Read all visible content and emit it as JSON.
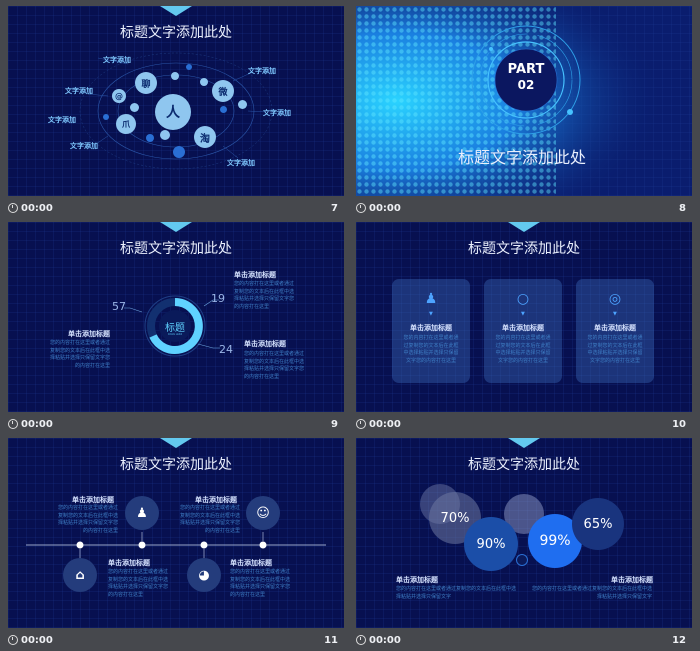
{
  "footer_time": "00:00",
  "slides": [
    {
      "page": "7",
      "title": "标题文字添加此处",
      "labels": [
        "文字添加",
        "文字添加",
        "文字添加",
        "文字添加",
        "文字添加",
        "文字添加",
        "文字添加"
      ],
      "icons": {
        "center": "人",
        "chat": "聊",
        "weibo": "微",
        "taobao": "淘",
        "at": "@",
        "paw": "爪"
      }
    },
    {
      "page": "8",
      "part": "PART",
      "num": "02",
      "title": "标题文字添加此处"
    },
    {
      "page": "9",
      "title": "标题文字添加此处",
      "ring_label": "标题",
      "ring_sub": "Click Add",
      "values": [
        "57",
        "19",
        "24"
      ],
      "blocks": [
        {
          "heading": "单击添加标题",
          "body": "您的内容打在这里或者通过复制您的文本后在此框中选择粘贴并选择只保留文字您的内容打在这里"
        },
        {
          "heading": "单击添加标题",
          "body": "您的内容打在这里或者通过复制您的文本后在此框中选择粘贴并选择只保留文字您的内容打在这里"
        },
        {
          "heading": "单击添加标题",
          "body": "您的内容打在这里或者通过复制您的文本后在此框中选择粘贴并选择只保留文字您的内容打在这里"
        }
      ]
    },
    {
      "page": "10",
      "title": "标题文字添加此处",
      "cards": [
        {
          "heading": "单击添加标题",
          "body": "您的内容打在这里或者通过复制您的文本后在此框中选择粘贴并选择只保留文字您的内容打在这里"
        },
        {
          "heading": "单击添加标题",
          "body": "您的内容打在这里或者通过复制您的文本后在此框中选择粘贴并选择只保留文字您的内容打在这里"
        },
        {
          "heading": "单击添加标题",
          "body": "您的内容打在这里或者通过复制您的文本后在此框中选择粘贴并选择只保留文字您的内容打在这里"
        }
      ]
    },
    {
      "page": "11",
      "title": "标题文字添加此处",
      "items": [
        {
          "heading": "单击添加标题",
          "body": "您的内容打在这里或者通过复制您的文本后在此框中选择粘贴并选择只保留文字您的内容打在这里"
        },
        {
          "heading": "单击添加标题",
          "body": "您的内容打在这里或者通过复制您的文本后在此框中选择粘贴并选择只保留文字您的内容打在这里"
        },
        {
          "heading": "单击添加标题",
          "body": "您的内容打在这里或者通过复制您的文本后在此框中选择粘贴并选择只保留文字您的内容打在这里"
        },
        {
          "heading": "单击添加标题",
          "body": "您的内容打在这里或者通过复制您的文本后在此框中选择粘贴并选择只保留文字您的内容打在这里"
        }
      ]
    },
    {
      "page": "12",
      "title": "标题文字添加此处",
      "percents": [
        "70%",
        "90%",
        "99%",
        "65%"
      ],
      "blocks": [
        {
          "heading": "单击添加标题",
          "body": "您的内容打在这里或者通过复制您的文本后在此框中选择粘贴并选择只保留文字"
        },
        {
          "heading": "单击添加标题",
          "body": "您的内容打在这里或者通过复制您的文本后在此框中选择粘贴并选择只保留文字"
        }
      ]
    }
  ]
}
